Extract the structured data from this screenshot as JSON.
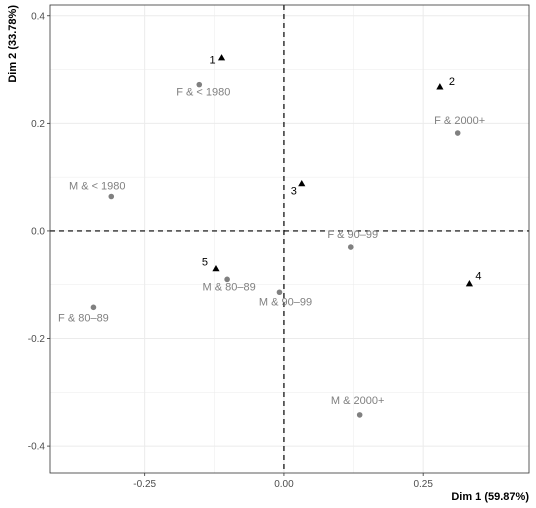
{
  "chart_data": {
    "type": "scatter",
    "xlabel": "Dim 1 (59.87%)",
    "ylabel": "Dim 2 (33.78%)",
    "xlim": [
      -0.42,
      0.44
    ],
    "ylim": [
      -0.45,
      0.42
    ],
    "x_ticks": [
      -0.25,
      0.0,
      0.25
    ],
    "x_tick_labels": [
      "-0.25",
      "0.00",
      "0.25"
    ],
    "y_ticks": [
      -0.4,
      -0.2,
      0.0,
      0.2,
      0.4
    ],
    "y_tick_labels": [
      "-0.4",
      "-0.2",
      "0.0",
      "0.2",
      "0.4"
    ],
    "grid": true,
    "reference_lines": {
      "x": 0,
      "y": 0,
      "style": "dashed"
    },
    "colors": {
      "rows": "#808080",
      "columns": "#000000",
      "grid": "#ebebeb",
      "panel_border": "#333333"
    },
    "series": [
      {
        "marker": "triangle",
        "points": [
          {
            "label": "1",
            "x": -0.112,
            "y": 0.322
          },
          {
            "label": "2",
            "x": 0.28,
            "y": 0.268
          },
          {
            "label": "3",
            "x": 0.032,
            "y": 0.088
          },
          {
            "label": "4",
            "x": 0.333,
            "y": -0.098
          },
          {
            "label": "5",
            "x": -0.122,
            "y": -0.07
          }
        ]
      },
      {
        "marker": "circle",
        "points": [
          {
            "label": "F & < 1980",
            "x": -0.152,
            "y": 0.272
          },
          {
            "label": "F & 2000+",
            "x": 0.312,
            "y": 0.182
          },
          {
            "label": "M & < 1980",
            "x": -0.31,
            "y": 0.064
          },
          {
            "label": "F & 90–99",
            "x": 0.12,
            "y": -0.03
          },
          {
            "label": "M & 80–89",
            "x": -0.102,
            "y": -0.09
          },
          {
            "label": "M & 90–99",
            "x": -0.008,
            "y": -0.114
          },
          {
            "label": "F & 80–89",
            "x": -0.342,
            "y": -0.142
          },
          {
            "label": "M & 2000+",
            "x": 0.136,
            "y": -0.342
          }
        ]
      }
    ]
  }
}
